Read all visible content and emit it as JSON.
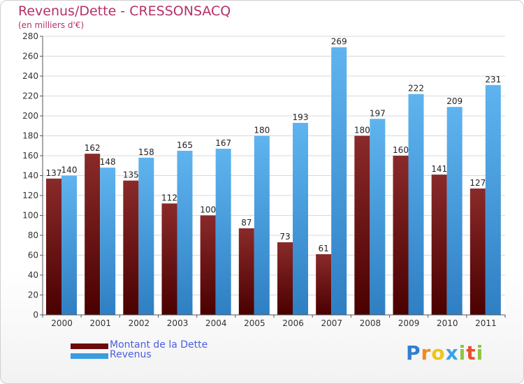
{
  "header": {
    "title": "Revenus/Dette - CRESSONSACQ",
    "subtitle": "(en milliers d'€)"
  },
  "legend": [
    {
      "label": "Montant de la Dette",
      "color": "#6b0a0a"
    },
    {
      "label": "Revenus",
      "color": "#3a9de0"
    }
  ],
  "brand": {
    "letters": [
      {
        "ch": "P",
        "color": "#2f7fd1"
      },
      {
        "ch": "r",
        "color": "#f08a1c"
      },
      {
        "ch": "o",
        "color": "#f0c419"
      },
      {
        "ch": "x",
        "color": "#3aa2e6"
      },
      {
        "ch": "i",
        "color": "#8cc63e"
      },
      {
        "ch": "t",
        "color": "#e94f2b"
      },
      {
        "ch": "i",
        "color": "#8cc63e"
      }
    ]
  },
  "chart_data": {
    "type": "bar",
    "categories": [
      "2000",
      "2001",
      "2002",
      "2003",
      "2004",
      "2005",
      "2006",
      "2007",
      "2008",
      "2009",
      "2010",
      "2011"
    ],
    "series": [
      {
        "name": "Montant de la Dette",
        "color": "#6b0a0a",
        "values": [
          137,
          162,
          135,
          112,
          100,
          87,
          73,
          61,
          180,
          160,
          141,
          127
        ]
      },
      {
        "name": "Revenus",
        "color": "#3a9de0",
        "values": [
          140,
          148,
          158,
          165,
          167,
          180,
          193,
          269,
          197,
          222,
          209,
          231
        ]
      }
    ],
    "ylim": [
      0,
      280
    ],
    "yticks": [
      0,
      20,
      40,
      60,
      80,
      100,
      120,
      140,
      160,
      180,
      200,
      220,
      240,
      260,
      280
    ],
    "grid": true,
    "legend_position": "bottom-left"
  }
}
